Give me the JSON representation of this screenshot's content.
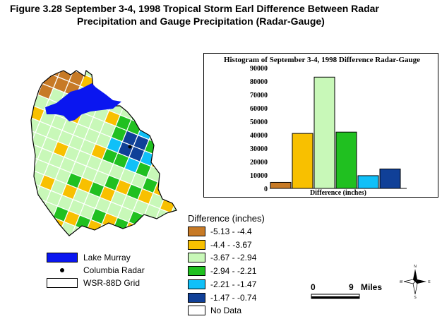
{
  "figure": {
    "title_line1": "Figure 3.28  September 3-4, 1998 Tropical Storm Earl Difference Between Radar",
    "title_line2": "Precipitation and Gauge Precipitation (Radar-Gauge)"
  },
  "colors": {
    "c1": "#c77a26",
    "c2": "#f8c000",
    "c3": "#c8f8b8",
    "c4": "#20c020",
    "c5": "#10c0f8",
    "c6": "#104098",
    "nodata": "#ffffff",
    "lake": "#0a16f0",
    "grid": "#d0f8f8"
  },
  "chart_data": {
    "type": "bar",
    "title": "Histogram of September 3-4, 1998 Difference Radar-Gauge",
    "xlabel": "Difference (inches)",
    "ylabel": "",
    "ylim": [
      0,
      90000
    ],
    "yticks": [
      "0",
      "10000",
      "20000",
      "30000",
      "40000",
      "50000",
      "60000",
      "70000",
      "80000",
      "90000"
    ],
    "categories": [
      "-5.13 - -4.4",
      "-4.4 - -3.67",
      "-3.67 - -2.94",
      "-2.94 - -2.21",
      "-2.21 - -1.47",
      "-1.47 - -0.74"
    ],
    "values": [
      4500,
      41000,
      83000,
      42000,
      9500,
      14500
    ],
    "bar_colors": [
      "#c77a26",
      "#f8c000",
      "#c8f8b8",
      "#20c020",
      "#10c0f8",
      "#104098"
    ],
    "grid": false
  },
  "legend": {
    "title": "Difference (inches)",
    "items": [
      {
        "label": "-5.13 - -4.4",
        "color": "#c77a26"
      },
      {
        "label": "-4.4 - -3.67",
        "color": "#f8c000"
      },
      {
        "label": "-3.67 - -2.94",
        "color": "#c8f8b8"
      },
      {
        "label": "-2.94 - -2.21",
        "color": "#20c020"
      },
      {
        "label": "-2.21 - -1.47",
        "color": "#10c0f8"
      },
      {
        "label": "-1.47 - -0.74",
        "color": "#104098"
      },
      {
        "label": "No Data",
        "color": "#ffffff"
      }
    ]
  },
  "map_legend": {
    "lake": "Lake Murray",
    "radar": "Columbia Radar",
    "grid": "WSR-88D Grid"
  },
  "scale_bar": {
    "start": "0",
    "end": "9",
    "unit": "Miles"
  },
  "compass": {
    "n": "N",
    "s": "S",
    "e": "E",
    "w": "W"
  }
}
